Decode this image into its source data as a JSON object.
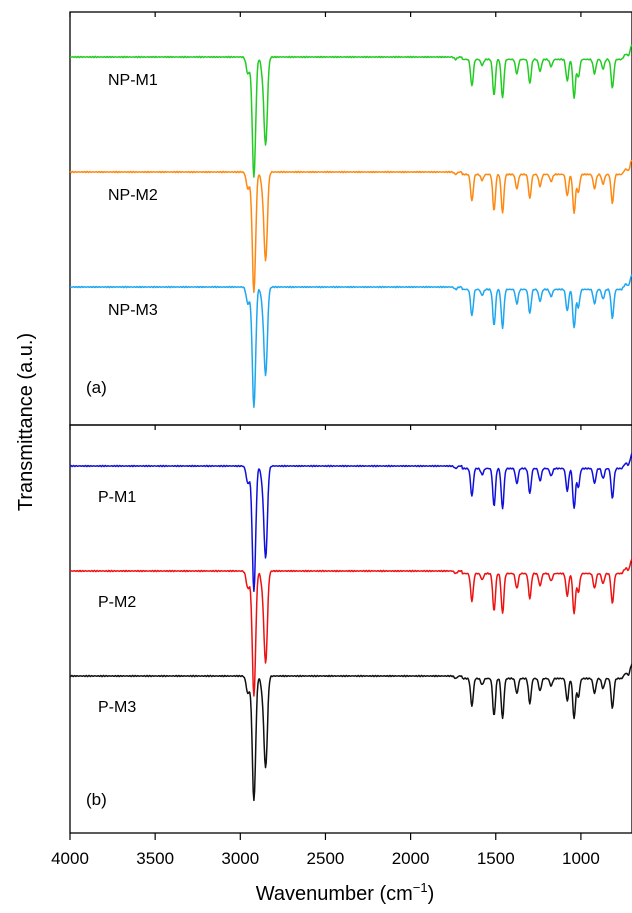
{
  "chart_data": {
    "type": "line",
    "xlabel": "Wavenumber (cm",
    "xlabel_sup": "−1",
    "xlabel_end": ")",
    "ylabel": "Transmittance (a.u.)",
    "xlim": [
      4000,
      700
    ],
    "x_reversed": true,
    "x_ticks": [
      "4000",
      "3500",
      "3000",
      "2500",
      "2000",
      "1500",
      "1000"
    ],
    "y_ticks_labeled": false,
    "panels": [
      {
        "label": "(a)",
        "series": [
          {
            "name": "NP-M1",
            "color": "#22cc22",
            "offset": 0
          },
          {
            "name": "NP-M2",
            "color": "#ff8811",
            "offset": 1
          },
          {
            "name": "NP-M3",
            "color": "#1ea7f0",
            "offset": 2
          }
        ]
      },
      {
        "label": "(b)",
        "series": [
          {
            "name": "P-M1",
            "color": "#1010dd",
            "offset": 0
          },
          {
            "name": "P-M2",
            "color": "#ee1111",
            "offset": 1
          },
          {
            "name": "P-M3",
            "color": "#111111",
            "offset": 2
          }
        ]
      }
    ],
    "bands": [
      {
        "x": 2955,
        "depth": 0.14
      },
      {
        "x": 2920,
        "depth": 1.0
      },
      {
        "x": 2870,
        "depth": 0.1
      },
      {
        "x": 2851,
        "depth": 0.72
      },
      {
        "x": 1735,
        "depth": 0.02
      },
      {
        "x": 1640,
        "depth": 0.22
      },
      {
        "x": 1580,
        "depth": 0.05
      },
      {
        "x": 1510,
        "depth": 0.3
      },
      {
        "x": 1460,
        "depth": 0.32
      },
      {
        "x": 1376,
        "depth": 0.12
      },
      {
        "x": 1300,
        "depth": 0.2
      },
      {
        "x": 1240,
        "depth": 0.1
      },
      {
        "x": 1175,
        "depth": 0.06
      },
      {
        "x": 1080,
        "depth": 0.18
      },
      {
        "x": 1040,
        "depth": 0.32
      },
      {
        "x": 1015,
        "depth": 0.15
      },
      {
        "x": 920,
        "depth": 0.12
      },
      {
        "x": 870,
        "depth": 0.08
      },
      {
        "x": 815,
        "depth": 0.24
      },
      {
        "x": 720,
        "depth": 0.05
      }
    ]
  }
}
